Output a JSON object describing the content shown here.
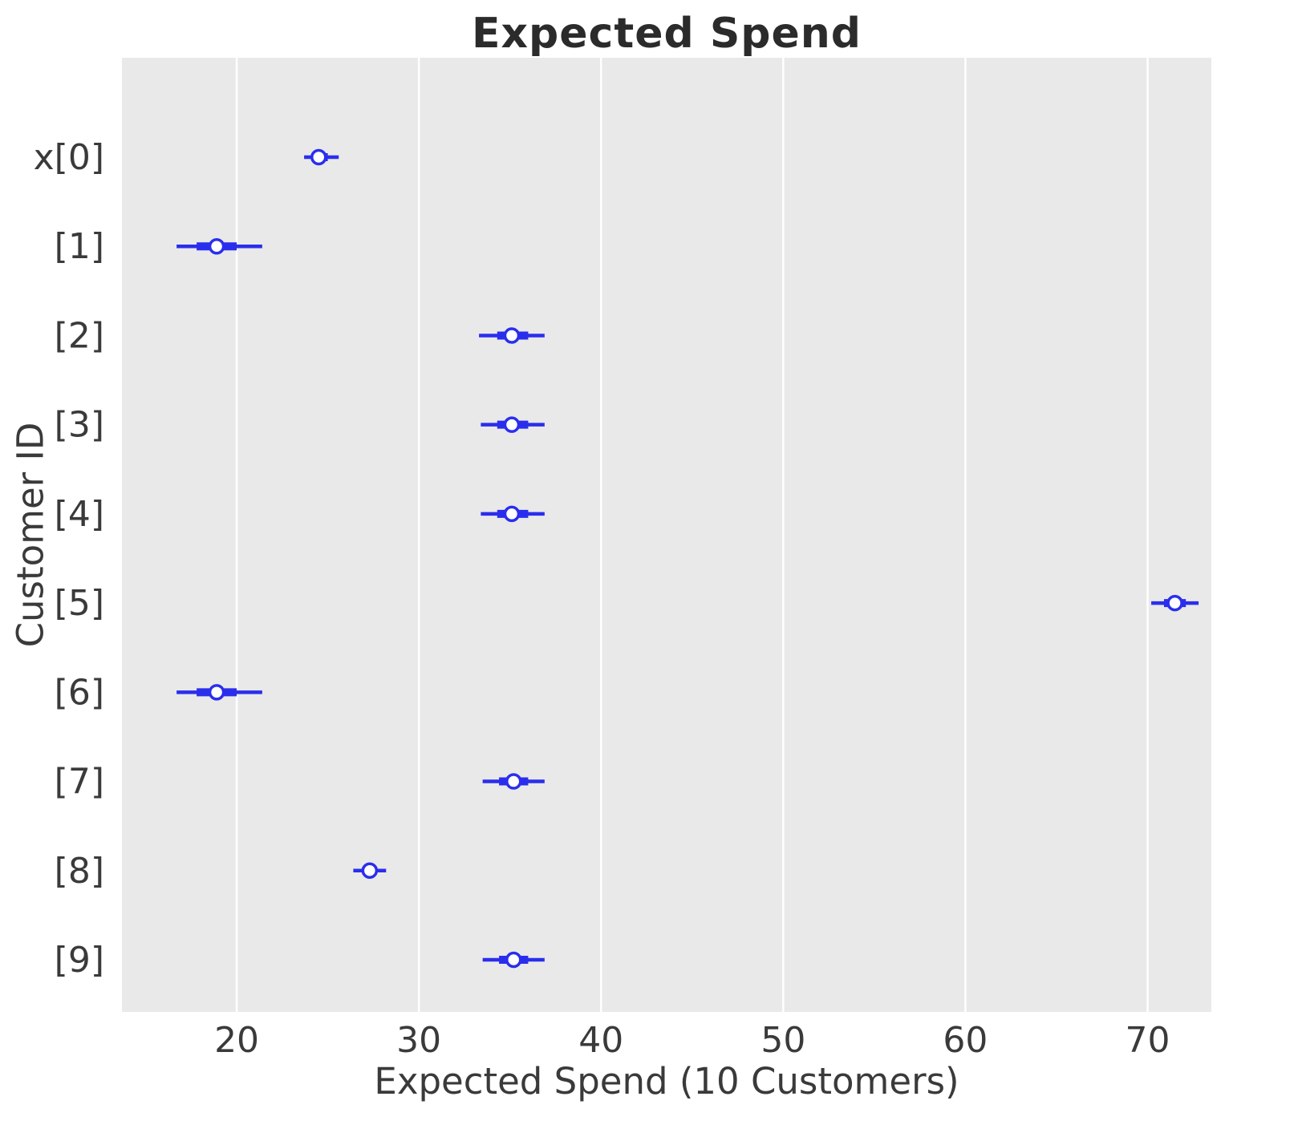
{
  "chart_data": {
    "type": "forest",
    "title": "Expected Spend",
    "xlabel": "Expected Spend (10 Customers)",
    "ylabel": "Customer ID",
    "x_ticks": [
      20,
      30,
      40,
      50,
      60,
      70
    ],
    "xlim": [
      13.7,
      73.5
    ],
    "grid": "vertical-only",
    "legend": "none",
    "accent_color": "#2a2eec",
    "background_color": "#e9e9e9",
    "grid_color": "#ffffff",
    "text_color": "#3a3a3a",
    "rows": [
      {
        "label": "x[0]",
        "mean": 24.5,
        "interval_outer": [
          23.7,
          25.6
        ],
        "interval_inner": [
          24.1,
          25.0
        ]
      },
      {
        "label": "[1]",
        "mean": 18.9,
        "interval_outer": [
          16.7,
          21.4
        ],
        "interval_inner": [
          17.8,
          20.0
        ]
      },
      {
        "label": "[2]",
        "mean": 35.1,
        "interval_outer": [
          33.3,
          36.9
        ],
        "interval_inner": [
          34.3,
          36.0
        ]
      },
      {
        "label": "[3]",
        "mean": 35.1,
        "interval_outer": [
          33.4,
          36.9
        ],
        "interval_inner": [
          34.3,
          36.0
        ]
      },
      {
        "label": "[4]",
        "mean": 35.1,
        "interval_outer": [
          33.4,
          36.9
        ],
        "interval_inner": [
          34.3,
          36.0
        ]
      },
      {
        "label": "[5]",
        "mean": 71.5,
        "interval_outer": [
          70.2,
          72.8
        ],
        "interval_inner": [
          70.9,
          72.1
        ]
      },
      {
        "label": "[6]",
        "mean": 18.9,
        "interval_outer": [
          16.7,
          21.4
        ],
        "interval_inner": [
          17.8,
          20.0
        ]
      },
      {
        "label": "[7]",
        "mean": 35.2,
        "interval_outer": [
          33.5,
          36.9
        ],
        "interval_inner": [
          34.4,
          36.0
        ]
      },
      {
        "label": "[8]",
        "mean": 27.3,
        "interval_outer": [
          26.4,
          28.2
        ],
        "interval_inner": [
          26.9,
          27.7
        ]
      },
      {
        "label": "[9]",
        "mean": 35.2,
        "interval_outer": [
          33.5,
          36.9
        ],
        "interval_inner": [
          34.4,
          36.0
        ]
      }
    ]
  }
}
